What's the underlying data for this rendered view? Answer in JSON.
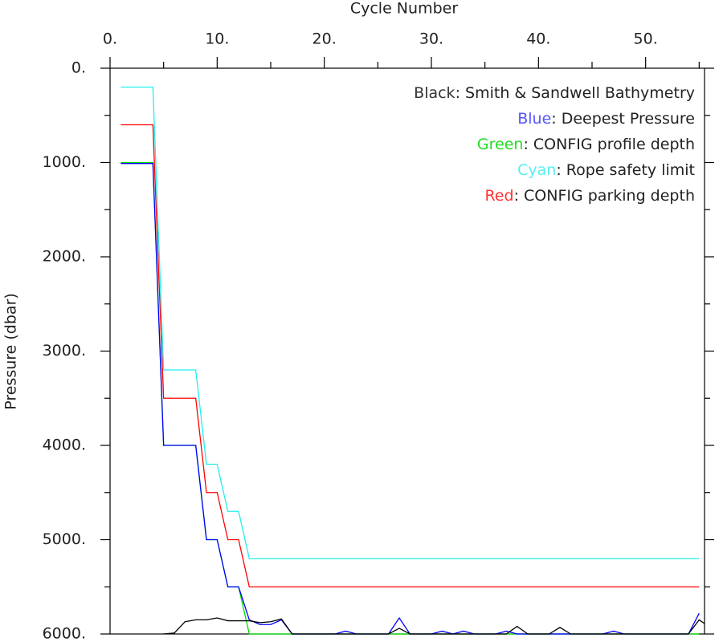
{
  "chart_data": {
    "type": "line",
    "x_label": "Cycle Number",
    "y_label": "Pressure (dbar)",
    "xlim": [
      0,
      55.5
    ],
    "ylim": [
      0,
      6000
    ],
    "y_inverted": true,
    "x_axis_position": "top",
    "xticks": [
      {
        "value": 0,
        "label": "0."
      },
      {
        "value": 10,
        "label": "10."
      },
      {
        "value": 20,
        "label": "20."
      },
      {
        "value": 30,
        "label": "30."
      },
      {
        "value": 40,
        "label": "40."
      },
      {
        "value": 50,
        "label": "50."
      }
    ],
    "xminorticks": [
      5,
      15,
      25,
      35,
      45,
      55
    ],
    "yticks": [
      {
        "value": 0,
        "label": "0."
      },
      {
        "value": 1000,
        "label": "1000."
      },
      {
        "value": 2000,
        "label": "2000."
      },
      {
        "value": 3000,
        "label": "3000."
      },
      {
        "value": 4000,
        "label": "4000."
      },
      {
        "value": 5000,
        "label": "5000."
      },
      {
        "value": 6000,
        "label": "6000."
      }
    ],
    "yminorticks": [
      500,
      1500,
      2500,
      3500,
      4500,
      5500
    ],
    "legend_position": "upper right",
    "legend_separator": ": ",
    "x": [
      1,
      2,
      3,
      4,
      5,
      6,
      7,
      8,
      9,
      10,
      11,
      12,
      13,
      14,
      15,
      16,
      17,
      18,
      19,
      20,
      21,
      22,
      23,
      24,
      25,
      26,
      27,
      28,
      29,
      30,
      31,
      32,
      33,
      34,
      35,
      36,
      37,
      38,
      39,
      40,
      41,
      42,
      43,
      44,
      45,
      46,
      47,
      48,
      49,
      50,
      51,
      52,
      53,
      54,
      55,
      56
    ],
    "series": [
      {
        "color_word": "Black",
        "name": "Smith & Sandwell Bathymetry",
        "color": "#000000",
        "word_color": "#333333",
        "values": [
          null,
          null,
          null,
          null,
          6000,
          5990,
          5870,
          5850,
          5850,
          5830,
          5860,
          5860,
          5860,
          5880,
          5870,
          5840,
          6000,
          6000,
          6000,
          6000,
          6000,
          6000,
          6000,
          6000,
          6000,
          6000,
          5940,
          6000,
          6000,
          6000,
          6000,
          6000,
          6000,
          6000,
          6000,
          6000,
          6000,
          5920,
          6000,
          6000,
          6000,
          5930,
          6000,
          6000,
          6000,
          6000,
          6000,
          6000,
          6000,
          6000,
          6000,
          6000,
          6000,
          6000,
          5850,
          5930
        ]
      },
      {
        "color_word": "Blue",
        "name": "Deepest Pressure",
        "color": "#0000ff",
        "word_color": "#5555ff",
        "values": [
          1010,
          1010,
          1010,
          1010,
          4000,
          4000,
          4000,
          4000,
          5000,
          5000,
          5500,
          5500,
          5850,
          5900,
          5900,
          5850,
          6000,
          6000,
          6000,
          6000,
          6000,
          5970,
          6000,
          6000,
          6000,
          6000,
          5830,
          6000,
          6000,
          6000,
          5970,
          6000,
          5970,
          6000,
          6000,
          6000,
          5970,
          6000,
          6000,
          6000,
          6000,
          6000,
          6000,
          6000,
          6000,
          6000,
          5970,
          6000,
          6000,
          6000,
          6000,
          6000,
          6000,
          6000,
          5780,
          null
        ]
      },
      {
        "color_word": "Green",
        "name": "CONFIG profile depth",
        "color": "#00dd00",
        "word_color": "#22dd22",
        "values": [
          1000,
          1000,
          1000,
          1000,
          4000,
          4000,
          4000,
          4000,
          5000,
          5000,
          5500,
          5500,
          6000,
          6000,
          6000,
          6000,
          6000,
          6000,
          6000,
          6000,
          6000,
          6000,
          6000,
          6000,
          6000,
          6000,
          6000,
          6000,
          6000,
          6000,
          6000,
          6000,
          6000,
          6000,
          6000,
          6000,
          6000,
          6000,
          6000,
          6000,
          6000,
          6000,
          6000,
          6000,
          6000,
          6000,
          6000,
          6000,
          6000,
          6000,
          6000,
          6000,
          6000,
          6000,
          6000,
          null
        ]
      },
      {
        "color_word": "Cyan",
        "name": "Rope safety limit",
        "color": "#22eeee",
        "word_color": "#55f0f0",
        "values": [
          200,
          200,
          200,
          200,
          3200,
          3200,
          3200,
          3200,
          4200,
          4200,
          4700,
          4700,
          5200,
          5200,
          5200,
          5200,
          5200,
          5200,
          5200,
          5200,
          5200,
          5200,
          5200,
          5200,
          5200,
          5200,
          5200,
          5200,
          5200,
          5200,
          5200,
          5200,
          5200,
          5200,
          5200,
          5200,
          5200,
          5200,
          5200,
          5200,
          5200,
          5200,
          5200,
          5200,
          5200,
          5200,
          5200,
          5200,
          5200,
          5200,
          5200,
          5200,
          5200,
          5200,
          5200,
          null
        ]
      },
      {
        "color_word": "Red",
        "name": "CONFIG parking depth",
        "color": "#ff0000",
        "word_color": "#ff3333",
        "values": [
          600,
          600,
          600,
          600,
          3500,
          3500,
          3500,
          3500,
          4500,
          4500,
          5000,
          5000,
          5500,
          5500,
          5500,
          5500,
          5500,
          5500,
          5500,
          5500,
          5500,
          5500,
          5500,
          5500,
          5500,
          5500,
          5500,
          5500,
          5500,
          5500,
          5500,
          5500,
          5500,
          5500,
          5500,
          5500,
          5500,
          5500,
          5500,
          5500,
          5500,
          5500,
          5500,
          5500,
          5500,
          5500,
          5500,
          5500,
          5500,
          5500,
          5500,
          5500,
          5500,
          5500,
          5500,
          null
        ]
      }
    ]
  }
}
